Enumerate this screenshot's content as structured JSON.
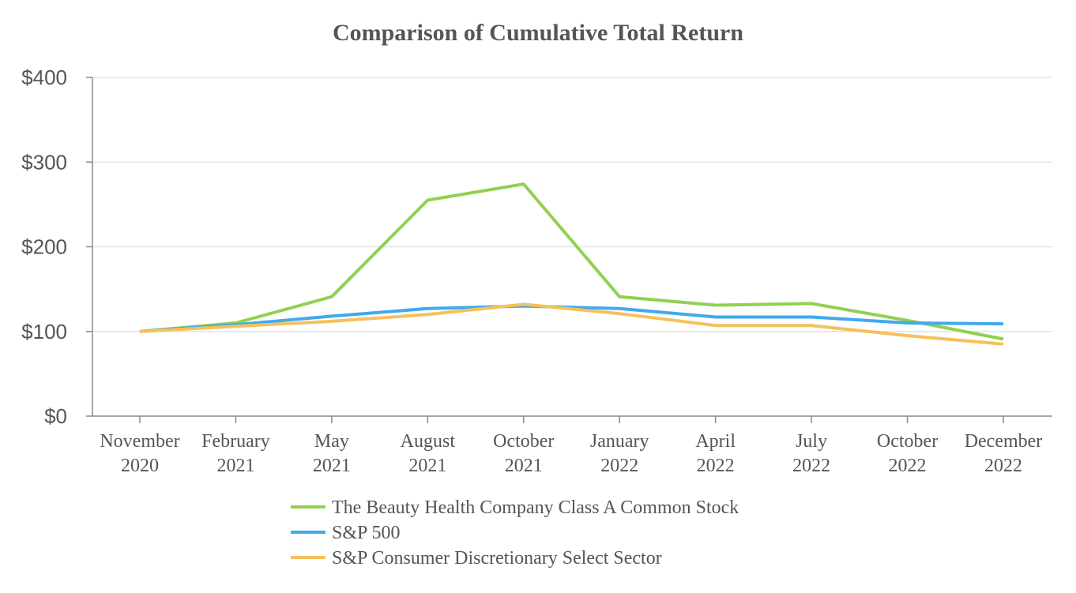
{
  "chart_data": {
    "type": "line",
    "title": "Comparison of Cumulative Total Return",
    "xlabel": "",
    "ylabel": "",
    "categories": [
      [
        "November",
        "2020"
      ],
      [
        "February",
        "2021"
      ],
      [
        "May",
        "2021"
      ],
      [
        "August",
        "2021"
      ],
      [
        "October",
        "2021"
      ],
      [
        "January",
        "2022"
      ],
      [
        "April",
        "2022"
      ],
      [
        "July",
        "2022"
      ],
      [
        "October",
        "2022"
      ],
      [
        "December",
        "2022"
      ]
    ],
    "ylim": [
      0,
      400
    ],
    "yticks": [
      0,
      100,
      200,
      300,
      400
    ],
    "ytick_labels": [
      "$0",
      "$100",
      "$200",
      "$300",
      "$400"
    ],
    "grid": "horizontal",
    "legend_position": "bottom",
    "series": [
      {
        "name": "The Beauty Health Company Class A Common Stock",
        "color": "#92d050",
        "values": [
          100,
          110,
          141,
          255,
          274,
          141,
          131,
          133,
          113,
          91
        ]
      },
      {
        "name": "S&P 500",
        "color": "#41a9ee",
        "values": [
          100,
          108,
          118,
          127,
          130,
          127,
          117,
          117,
          110,
          109
        ]
      },
      {
        "name": "S&P Consumer Discretionary Select Sector",
        "color": "#f5c15b",
        "values": [
          100,
          106,
          112,
          120,
          132,
          121,
          107,
          107,
          95,
          85
        ]
      }
    ]
  }
}
